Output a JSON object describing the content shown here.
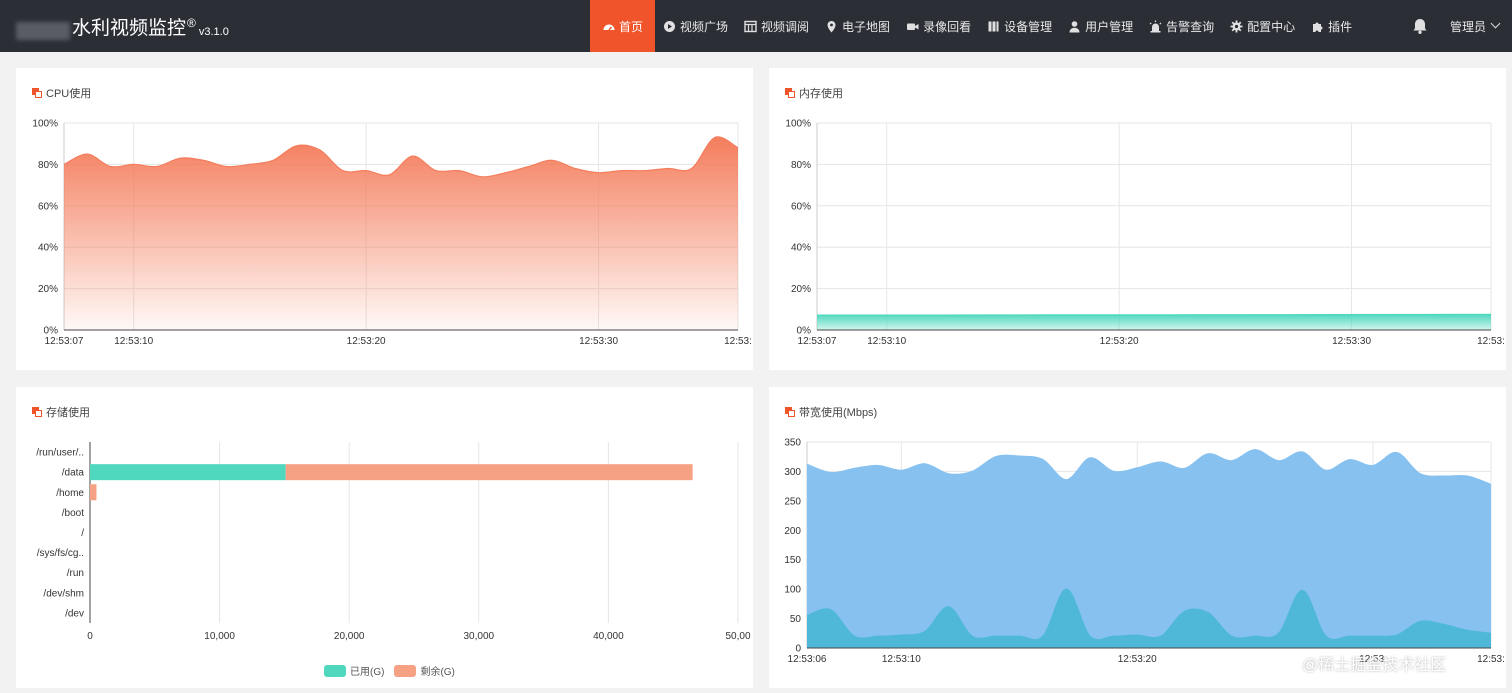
{
  "header": {
    "title": "水利视频监控",
    "reg": "®",
    "version": "v3.1.0",
    "nav": [
      {
        "label": "首页",
        "icon": "dashboard-icon",
        "active": true
      },
      {
        "label": "视频广场",
        "icon": "play-icon"
      },
      {
        "label": "视频调阅",
        "icon": "grid-icon"
      },
      {
        "label": "电子地图",
        "icon": "map-pin-icon"
      },
      {
        "label": "录像回看",
        "icon": "video-camera-icon"
      },
      {
        "label": "设备管理",
        "icon": "device-icon"
      },
      {
        "label": "用户管理",
        "icon": "user-icon"
      },
      {
        "label": "告警查询",
        "icon": "alarm-icon"
      },
      {
        "label": "配置中心",
        "icon": "gear-icon"
      },
      {
        "label": "插件",
        "icon": "puzzle-icon"
      }
    ],
    "user": "管理员",
    "accent": "#f0542b",
    "bg": "#2b2e35"
  },
  "panels": {
    "cpu": {
      "title": "CPU使用"
    },
    "memory": {
      "title": "内存使用"
    },
    "storage": {
      "title": "存储使用"
    },
    "bandwidth": {
      "title": "带宽使用(Mbps)"
    }
  },
  "chart_data": [
    {
      "type": "area",
      "title": "CPU使用",
      "color": "#f47d5c",
      "ylim": [
        0,
        100
      ],
      "y_ticks": [
        "0%",
        "20%",
        "40%",
        "60%",
        "80%",
        "100%"
      ],
      "x_ticks": [
        {
          "t": 0,
          "label": "12:53:07"
        },
        {
          "t": 3,
          "label": "12:53:10"
        },
        {
          "t": 13,
          "label": "12:53:20"
        },
        {
          "t": 23,
          "label": "12:53:30"
        },
        {
          "t": 29,
          "label": "12:53:"
        }
      ],
      "xlim": [
        0,
        29
      ],
      "x": [
        0,
        1,
        2,
        3,
        4,
        5,
        6,
        7,
        8,
        9,
        10,
        11,
        12,
        13,
        14,
        15,
        16,
        17,
        18,
        19,
        20,
        21,
        22,
        23,
        24,
        25,
        26,
        27,
        28,
        29
      ],
      "values": [
        80,
        85,
        79,
        80,
        79,
        83,
        82,
        79,
        80,
        82,
        89,
        87,
        77,
        77,
        75,
        84,
        77,
        77,
        74,
        76,
        79,
        82,
        78,
        76,
        77,
        77,
        78,
        78,
        93,
        88
      ]
    },
    {
      "type": "area",
      "title": "内存使用",
      "color": "#4fd8be",
      "ylim": [
        0,
        100
      ],
      "y_ticks": [
        "0%",
        "20%",
        "40%",
        "60%",
        "80%",
        "100%"
      ],
      "x_ticks": [
        {
          "t": 0,
          "label": "12:53:07"
        },
        {
          "t": 3,
          "label": "12:53:10"
        },
        {
          "t": 13,
          "label": "12:53:20"
        },
        {
          "t": 23,
          "label": "12:53:30"
        },
        {
          "t": 29,
          "label": "12:53:"
        }
      ],
      "xlim": [
        0,
        29
      ],
      "x": [
        0,
        5,
        10,
        15,
        20,
        25,
        29
      ],
      "values": [
        7.2,
        7.2,
        7.3,
        7.3,
        7.4,
        7.5,
        7.6
      ]
    },
    {
      "type": "bar",
      "orientation": "horizontal",
      "stacked": true,
      "title": "存储使用",
      "categories": [
        "/run/user/..",
        "/data",
        "/home",
        "/boot",
        "/",
        "/sys/fs/cg..",
        "/run",
        "/dev/shm",
        "/dev"
      ],
      "series": [
        {
          "name": "已用(G)",
          "color": "#4fd8be",
          "values": [
            0,
            15100,
            0,
            0,
            0,
            0,
            0,
            0,
            0
          ]
        },
        {
          "name": "剩余(G)",
          "color": "#f7a184",
          "values": [
            0,
            31400,
            500,
            0,
            0,
            0,
            0,
            0,
            0
          ]
        }
      ],
      "xlim": [
        0,
        50000
      ],
      "x_ticks": [
        "0",
        "10,000",
        "20,000",
        "30,000",
        "40,000",
        "50,00"
      ]
    },
    {
      "type": "area",
      "title": "带宽使用(Mbps)",
      "ylim": [
        0,
        350
      ],
      "y_ticks": [
        "0",
        "50",
        "100",
        "150",
        "200",
        "250",
        "300",
        "350"
      ],
      "x_ticks": [
        {
          "t": 0,
          "label": "12:53:06"
        },
        {
          "t": 4,
          "label": "12:53:10"
        },
        {
          "t": 14,
          "label": "12:53:20"
        },
        {
          "t": 24,
          "label": "12:53:"
        },
        {
          "t": 29,
          "label": "12:53:"
        }
      ],
      "xlim": [
        0,
        29
      ],
      "x": [
        0,
        1,
        2,
        3,
        4,
        5,
        6,
        7,
        8,
        9,
        10,
        11,
        12,
        13,
        14,
        15,
        16,
        17,
        18,
        19,
        20,
        21,
        22,
        23,
        24,
        25,
        26,
        27,
        28,
        29
      ],
      "series": [
        {
          "color": "#86c1f0",
          "values": [
            312,
            298,
            305,
            310,
            302,
            313,
            296,
            300,
            325,
            326,
            320,
            286,
            323,
            300,
            306,
            316,
            305,
            330,
            318,
            337,
            318,
            333,
            302,
            320,
            310,
            332,
            296,
            292,
            292,
            278
          ]
        },
        {
          "color": "#4fb8d8",
          "values": [
            55,
            65,
            20,
            20,
            22,
            28,
            70,
            20,
            20,
            20,
            20,
            100,
            20,
            20,
            22,
            20,
            62,
            60,
            20,
            20,
            25,
            98,
            20,
            20,
            20,
            22,
            45,
            40,
            30,
            25
          ]
        }
      ]
    }
  ],
  "watermark": "@稀土掘金技术社区"
}
